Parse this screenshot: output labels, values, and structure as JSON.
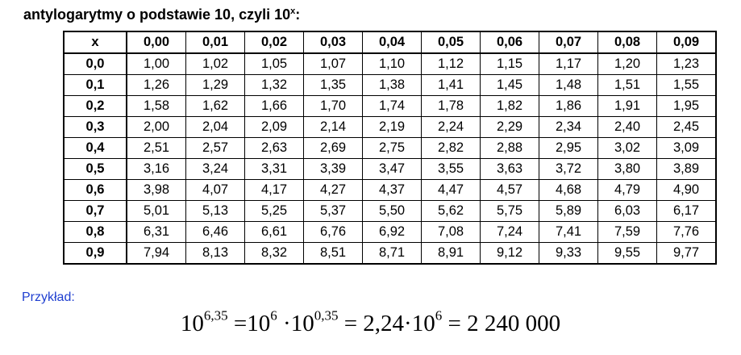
{
  "title": {
    "text": "antylogarytmy o podstawie 10, czyli 10",
    "sup": "x",
    "suffix": ":"
  },
  "table": {
    "header": [
      "x",
      "0,00",
      "0,01",
      "0,02",
      "0,03",
      "0,04",
      "0,05",
      "0,06",
      "0,07",
      "0,08",
      "0,09"
    ],
    "rows": [
      [
        "0,0",
        "1,00",
        "1,02",
        "1,05",
        "1,07",
        "1,10",
        "1,12",
        "1,15",
        "1,17",
        "1,20",
        "1,23"
      ],
      [
        "0,1",
        "1,26",
        "1,29",
        "1,32",
        "1,35",
        "1,38",
        "1,41",
        "1,45",
        "1,48",
        "1,51",
        "1,55"
      ],
      [
        "0,2",
        "1,58",
        "1,62",
        "1,66",
        "1,70",
        "1,74",
        "1,78",
        "1,82",
        "1,86",
        "1,91",
        "1,95"
      ],
      [
        "0,3",
        "2,00",
        "2,04",
        "2,09",
        "2,14",
        "2,19",
        "2,24",
        "2,29",
        "2,34",
        "2,40",
        "2,45"
      ],
      [
        "0,4",
        "2,51",
        "2,57",
        "2,63",
        "2,69",
        "2,75",
        "2,82",
        "2,88",
        "2,95",
        "3,02",
        "3,09"
      ],
      [
        "0,5",
        "3,16",
        "3,24",
        "3,31",
        "3,39",
        "3,47",
        "3,55",
        "3,63",
        "3,72",
        "3,80",
        "3,89"
      ],
      [
        "0,6",
        "3,98",
        "4,07",
        "4,17",
        "4,27",
        "4,37",
        "4,47",
        "4,57",
        "4,68",
        "4,79",
        "4,90"
      ],
      [
        "0,7",
        "5,01",
        "5,13",
        "5,25",
        "5,37",
        "5,50",
        "5,62",
        "5,75",
        "5,89",
        "6,03",
        "6,17"
      ],
      [
        "0,8",
        "6,31",
        "6,46",
        "6,61",
        "6,76",
        "6,92",
        "7,08",
        "7,24",
        "7,41",
        "7,59",
        "7,76"
      ],
      [
        "0,9",
        "7,94",
        "8,13",
        "8,32",
        "8,51",
        "8,71",
        "8,91",
        "9,12",
        "9,33",
        "9,55",
        "9,77"
      ]
    ]
  },
  "example": {
    "label": "Przykład:",
    "equation": [
      {
        "base": "10",
        "sup": "6,35"
      },
      {
        "base": " =10",
        "sup": "6"
      },
      {
        "base": " ·10",
        "sup": "0,35"
      },
      {
        "base": " = 2,24·10",
        "sup": "6"
      },
      {
        "base": " = 2 240 000"
      }
    ]
  }
}
